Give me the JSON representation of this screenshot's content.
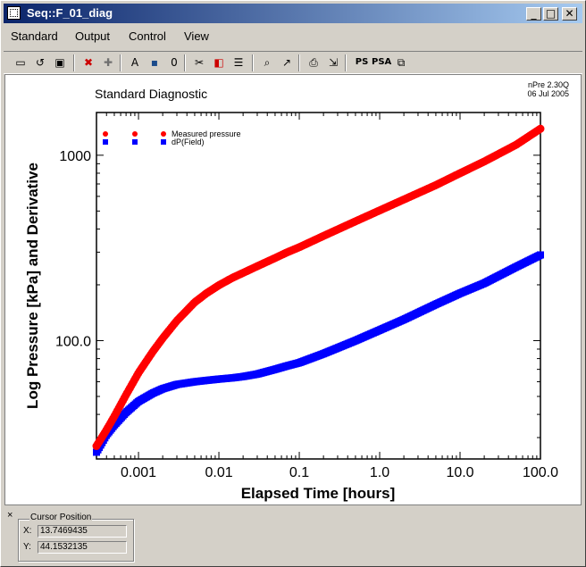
{
  "window": {
    "title": "Seq::F_01_diag",
    "buttons": {
      "minimize": "_",
      "maximize": "□",
      "close": "✕"
    }
  },
  "menu": [
    "Standard",
    "Output",
    "Control",
    "View"
  ],
  "toolbar": {
    "items": [
      {
        "name": "new-plot-icon",
        "glyph": "▭"
      },
      {
        "name": "reset-icon",
        "glyph": "↺"
      },
      {
        "name": "add-plot-icon",
        "glyph": "▣"
      },
      {
        "name": "delete-icon",
        "glyph": "✖"
      },
      {
        "name": "add-icon",
        "glyph": "✚"
      },
      {
        "name": "text-icon",
        "glyph": "A"
      },
      {
        "name": "save-icon",
        "glyph": "▪"
      },
      {
        "name": "zero-icon",
        "glyph": "0"
      },
      {
        "name": "scissors-icon",
        "glyph": "✂"
      },
      {
        "name": "color-icon",
        "glyph": "◧"
      },
      {
        "name": "list-icon",
        "glyph": "☰"
      },
      {
        "name": "zoom-icon",
        "glyph": "⌕"
      },
      {
        "name": "arrow-icon",
        "glyph": "↗"
      },
      {
        "name": "print-icon",
        "glyph": "⎙"
      },
      {
        "name": "export-icon",
        "glyph": "⇲"
      },
      {
        "name": "postscript-icon",
        "glyph": "PS"
      },
      {
        "name": "psa-icon",
        "glyph": "PSA"
      },
      {
        "name": "copy-icon",
        "glyph": "⧉"
      }
    ],
    "colors": {
      "delete": "#cc0000",
      "add": "#707070",
      "save": "#1a4a8a",
      "color": "#cc0000"
    }
  },
  "plot": {
    "title": "Standard Diagnostic",
    "version": "nPre  2.30Q",
    "date": "06  Jul  2005"
  },
  "chart_data": {
    "type": "scatter",
    "title": "Standard Diagnostic",
    "xlabel": "Elapsed  Time  [hours]",
    "ylabel": "Log  Pressure  [kPa]  and  Derivative",
    "xscale": "log",
    "yscale": "log",
    "xlim": [
      0.0003,
      100
    ],
    "ylim": [
      23,
      1700
    ],
    "xticks": [
      0.001,
      0.01,
      0.1,
      1.0,
      10.0,
      100.0
    ],
    "xtick_labels": [
      "0.001",
      "0.01",
      "0.1",
      "1.0",
      "10.0",
      "100.0"
    ],
    "yticks": [
      100,
      1000
    ],
    "ytick_labels": [
      "100.0",
      "1000"
    ],
    "legend_position": "top-left",
    "series": [
      {
        "name": "Measured  pressure",
        "marker": "circle",
        "color": "#ff0000",
        "x": [
          0.0003,
          0.0004,
          0.0005,
          0.0007,
          0.001,
          0.0015,
          0.002,
          0.003,
          0.005,
          0.007,
          0.01,
          0.015,
          0.02,
          0.03,
          0.05,
          0.07,
          0.1,
          0.2,
          0.5,
          1,
          2,
          5,
          10,
          20,
          50,
          100
        ],
        "y": [
          27,
          33,
          39,
          51,
          67,
          87,
          103,
          128,
          161,
          180,
          199,
          219,
          232,
          252,
          279,
          299,
          319,
          367,
          440,
          504,
          577,
          690,
          800,
          925,
          1140,
          1390
        ]
      },
      {
        "name": "dP(Field)",
        "marker": "square",
        "color": "#0000ff",
        "x": [
          0.0003,
          0.0004,
          0.0005,
          0.0007,
          0.001,
          0.0015,
          0.002,
          0.003,
          0.005,
          0.007,
          0.01,
          0.015,
          0.02,
          0.03,
          0.05,
          0.07,
          0.1,
          0.2,
          0.5,
          1,
          2,
          5,
          10,
          20,
          50,
          100
        ],
        "y": [
          25,
          31,
          35,
          41,
          47,
          52,
          55,
          58,
          60,
          61,
          62,
          63,
          64,
          66,
          70,
          73,
          76,
          85,
          100,
          114,
          130,
          157,
          180,
          204,
          250,
          290
        ]
      }
    ]
  },
  "cursor": {
    "label": "Cursor Position",
    "close": "×",
    "x_label": "X:",
    "x_value": "13.7469435",
    "y_label": "Y:",
    "y_value": "44.1532135"
  }
}
